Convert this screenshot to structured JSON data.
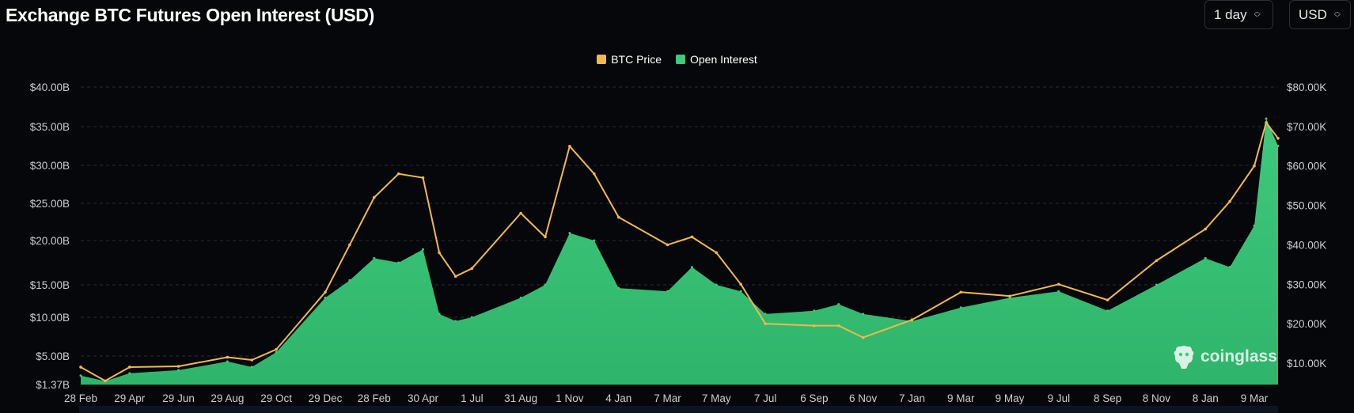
{
  "header": {
    "title": "Exchange BTC Futures Open Interest (USD)",
    "interval_select": "1 day",
    "currency_select": "USD"
  },
  "watermark": {
    "text": "coinglass"
  },
  "chart_data": {
    "type": "area",
    "title": "Exchange BTC Futures Open Interest (USD)",
    "legend": {
      "position": "top-center",
      "items": [
        {
          "name": "BTC Price",
          "color": "#f0b94b"
        },
        {
          "name": "Open Interest",
          "color": "#3ec97c"
        }
      ]
    },
    "grid": true,
    "x_tick_labels": [
      "28 Feb",
      "29 Apr",
      "29 Jun",
      "29 Aug",
      "29 Oct",
      "29 Dec",
      "28 Feb",
      "30 Apr",
      "1 Jul",
      "31 Aug",
      "1 Nov",
      "4 Jan",
      "7 Mar",
      "7 May",
      "7 Jul",
      "6 Sep",
      "6 Nov",
      "7 Jan",
      "9 Mar",
      "9 May",
      "9 Jul",
      "8 Sep",
      "8 Nov",
      "8 Jan",
      "9 Mar"
    ],
    "y_left": {
      "ticks": [
        "$1.37B",
        "$5.00B",
        "$10.00B",
        "$15.00B",
        "$20.00B",
        "$25.00B",
        "$30.00B",
        "$35.00B",
        "$40.00B"
      ],
      "tick_values": [
        1.37,
        5,
        10,
        15,
        20,
        25,
        30,
        35,
        40
      ],
      "min": 1.37,
      "max": 40,
      "unit": "USD billions"
    },
    "y_right": {
      "ticks": [
        "$10.00K",
        "$20.00K",
        "$30.00K",
        "$40.00K",
        "$50.00K",
        "$60.00K",
        "$70.00K",
        "$80.00K"
      ],
      "tick_values": [
        10,
        20,
        30,
        40,
        50,
        60,
        70,
        80
      ],
      "min": 5,
      "max": 80,
      "unit": "USD thousands"
    },
    "series": [
      {
        "name": "Open Interest",
        "axis": "left",
        "kind": "area",
        "color": "#3ec97c",
        "x": [
          "28 Feb",
          "15 Mar",
          "29 Apr",
          "29 Jun",
          "29 Aug",
          "29 Sep",
          "29 Oct",
          "29 Dec",
          "15 Jan",
          "28 Feb",
          "15 Mar",
          "30 Apr",
          "10 May",
          "20 Jun",
          "1 Jul",
          "31 Aug",
          "20 Sep",
          "1 Nov",
          "20 Nov",
          "4 Jan",
          "7 Mar",
          "20 Apr",
          "7 May",
          "7 Jun",
          "7 Jul",
          "6 Sep",
          "20 Oct",
          "6 Nov",
          "7 Jan",
          "9 Mar",
          "9 May",
          "9 Jul",
          "8 Sep",
          "8 Nov",
          "8 Jan",
          "20 Feb",
          "9 Mar",
          "15 Mar",
          "19 Mar"
        ],
        "values": [
          2.5,
          1.8,
          2.8,
          3.2,
          4.3,
          3.6,
          5.5,
          13.0,
          15.5,
          18.0,
          17.5,
          19.0,
          10.5,
          9.5,
          10.0,
          13.0,
          15.0,
          21.0,
          20.0,
          14.5,
          14.0,
          17.0,
          15.0,
          14.0,
          10.5,
          11.0,
          12.0,
          10.5,
          9.5,
          11.5,
          13.0,
          14.0,
          11.0,
          15.0,
          18.0,
          17.0,
          22.0,
          36.0,
          32.5
        ]
      },
      {
        "name": "BTC Price",
        "axis": "right",
        "kind": "line",
        "color": "#f0b94b",
        "x": [
          "28 Feb",
          "15 Mar",
          "29 Apr",
          "29 Jun",
          "29 Aug",
          "29 Sep",
          "29 Oct",
          "29 Dec",
          "15 Jan",
          "28 Feb",
          "15 Mar",
          "30 Apr",
          "10 May",
          "20 Jun",
          "1 Jul",
          "31 Aug",
          "20 Sep",
          "1 Nov",
          "20 Nov",
          "4 Jan",
          "7 Mar",
          "20 Apr",
          "7 May",
          "7 Jun",
          "7 Jul",
          "6 Sep",
          "20 Oct",
          "6 Nov",
          "7 Jan",
          "9 Mar",
          "9 May",
          "9 Jul",
          "8 Sep",
          "8 Nov",
          "8 Jan",
          "20 Feb",
          "9 Mar",
          "15 Mar",
          "19 Mar"
        ],
        "values": [
          9.0,
          5.5,
          9.0,
          9.2,
          11.5,
          10.8,
          13.5,
          28.0,
          40.0,
          52.0,
          58.0,
          57.0,
          38.0,
          32.0,
          34.0,
          48.0,
          42.0,
          65.0,
          58.0,
          47.0,
          40.0,
          42.0,
          38.0,
          30.0,
          20.0,
          19.5,
          19.5,
          16.5,
          21.0,
          28.0,
          27.0,
          30.0,
          26.0,
          36.0,
          44.0,
          51.0,
          60.0,
          71.0,
          67.0
        ]
      }
    ]
  }
}
